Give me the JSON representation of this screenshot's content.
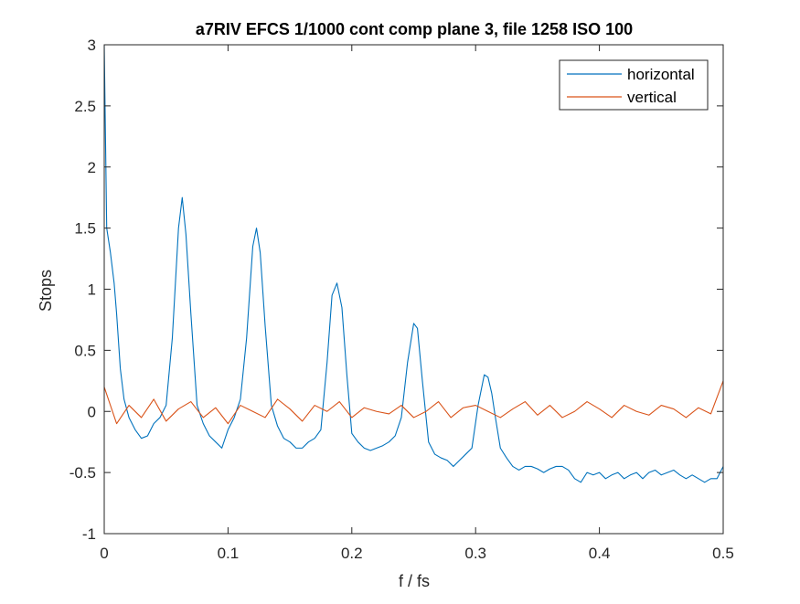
{
  "chart_data": {
    "type": "line",
    "title": "a7RIV EFCS 1/1000 cont comp plane 3, file 1258 ISO 100",
    "xlabel": "f / fs",
    "ylabel": "Stops",
    "xlim": [
      0,
      0.5
    ],
    "ylim": [
      -1,
      3
    ],
    "xticks": [
      0,
      0.1,
      0.2,
      0.3,
      0.4,
      0.5
    ],
    "xtick_labels": [
      "0",
      "0.1",
      "0.2",
      "0.3",
      "0.4",
      "0.5"
    ],
    "yticks": [
      -1,
      -0.5,
      0,
      0.5,
      1,
      1.5,
      2,
      2.5,
      3
    ],
    "ytick_labels": [
      "-1",
      "-0.5",
      "0",
      "0.5",
      "1",
      "1.5",
      "2",
      "2.5",
      "3"
    ],
    "grid": false,
    "legend_position": "top-right",
    "series": [
      {
        "name": "horizontal",
        "color": "#0072BD",
        "x": [
          0,
          0.002,
          0.005,
          0.008,
          0.01,
          0.013,
          0.016,
          0.02,
          0.025,
          0.03,
          0.035,
          0.04,
          0.045,
          0.05,
          0.055,
          0.06,
          0.063,
          0.066,
          0.07,
          0.075,
          0.08,
          0.085,
          0.09,
          0.095,
          0.1,
          0.105,
          0.11,
          0.115,
          0.12,
          0.123,
          0.126,
          0.13,
          0.135,
          0.14,
          0.145,
          0.15,
          0.155,
          0.16,
          0.165,
          0.17,
          0.175,
          0.18,
          0.184,
          0.188,
          0.192,
          0.196,
          0.2,
          0.205,
          0.21,
          0.215,
          0.22,
          0.225,
          0.23,
          0.235,
          0.24,
          0.245,
          0.25,
          0.253,
          0.257,
          0.262,
          0.267,
          0.272,
          0.277,
          0.282,
          0.287,
          0.292,
          0.297,
          0.302,
          0.307,
          0.31,
          0.313,
          0.316,
          0.32,
          0.325,
          0.33,
          0.335,
          0.34,
          0.345,
          0.35,
          0.355,
          0.36,
          0.365,
          0.37,
          0.375,
          0.38,
          0.385,
          0.39,
          0.395,
          0.4,
          0.405,
          0.41,
          0.415,
          0.42,
          0.425,
          0.43,
          0.435,
          0.44,
          0.445,
          0.45,
          0.455,
          0.46,
          0.465,
          0.47,
          0.475,
          0.48,
          0.485,
          0.49,
          0.495,
          0.5
        ],
        "y": [
          3.0,
          1.5,
          1.3,
          1.05,
          0.8,
          0.35,
          0.1,
          -0.05,
          -0.15,
          -0.22,
          -0.2,
          -0.1,
          -0.05,
          0.05,
          0.6,
          1.5,
          1.75,
          1.45,
          0.8,
          0.05,
          -0.1,
          -0.2,
          -0.25,
          -0.3,
          -0.15,
          -0.05,
          0.1,
          0.6,
          1.35,
          1.5,
          1.3,
          0.7,
          0.05,
          -0.12,
          -0.22,
          -0.25,
          -0.3,
          -0.3,
          -0.25,
          -0.22,
          -0.15,
          0.4,
          0.95,
          1.05,
          0.85,
          0.3,
          -0.18,
          -0.25,
          -0.3,
          -0.32,
          -0.3,
          -0.28,
          -0.25,
          -0.2,
          -0.05,
          0.4,
          0.72,
          0.68,
          0.25,
          -0.25,
          -0.35,
          -0.38,
          -0.4,
          -0.45,
          -0.4,
          -0.35,
          -0.3,
          0.05,
          0.3,
          0.28,
          0.15,
          -0.05,
          -0.3,
          -0.38,
          -0.45,
          -0.48,
          -0.45,
          -0.45,
          -0.47,
          -0.5,
          -0.47,
          -0.45,
          -0.45,
          -0.48,
          -0.55,
          -0.58,
          -0.5,
          -0.52,
          -0.5,
          -0.55,
          -0.52,
          -0.5,
          -0.55,
          -0.52,
          -0.5,
          -0.55,
          -0.5,
          -0.48,
          -0.52,
          -0.5,
          -0.48,
          -0.52,
          -0.55,
          -0.52,
          -0.55,
          -0.58,
          -0.55,
          -0.55,
          -0.45
        ]
      },
      {
        "name": "vertical",
        "color": "#D95319",
        "x": [
          0,
          0.01,
          0.02,
          0.03,
          0.04,
          0.05,
          0.06,
          0.07,
          0.08,
          0.09,
          0.1,
          0.11,
          0.12,
          0.13,
          0.14,
          0.15,
          0.16,
          0.17,
          0.18,
          0.19,
          0.2,
          0.21,
          0.22,
          0.23,
          0.24,
          0.25,
          0.26,
          0.27,
          0.28,
          0.29,
          0.3,
          0.31,
          0.32,
          0.33,
          0.34,
          0.35,
          0.36,
          0.37,
          0.38,
          0.39,
          0.4,
          0.41,
          0.42,
          0.43,
          0.44,
          0.45,
          0.46,
          0.47,
          0.48,
          0.49,
          0.5
        ],
        "y": [
          0.2,
          -0.1,
          0.05,
          -0.05,
          0.1,
          -0.08,
          0.02,
          0.08,
          -0.05,
          0.03,
          -0.1,
          0.05,
          0.0,
          -0.05,
          0.1,
          0.02,
          -0.08,
          0.05,
          0.0,
          0.08,
          -0.05,
          0.03,
          0.0,
          -0.02,
          0.05,
          -0.05,
          0.0,
          0.08,
          -0.05,
          0.03,
          0.05,
          0.0,
          -0.05,
          0.02,
          0.08,
          -0.03,
          0.05,
          -0.05,
          0.0,
          0.08,
          0.02,
          -0.05,
          0.05,
          0.0,
          -0.03,
          0.05,
          0.02,
          -0.05,
          0.03,
          -0.02,
          0.25
        ]
      }
    ]
  }
}
